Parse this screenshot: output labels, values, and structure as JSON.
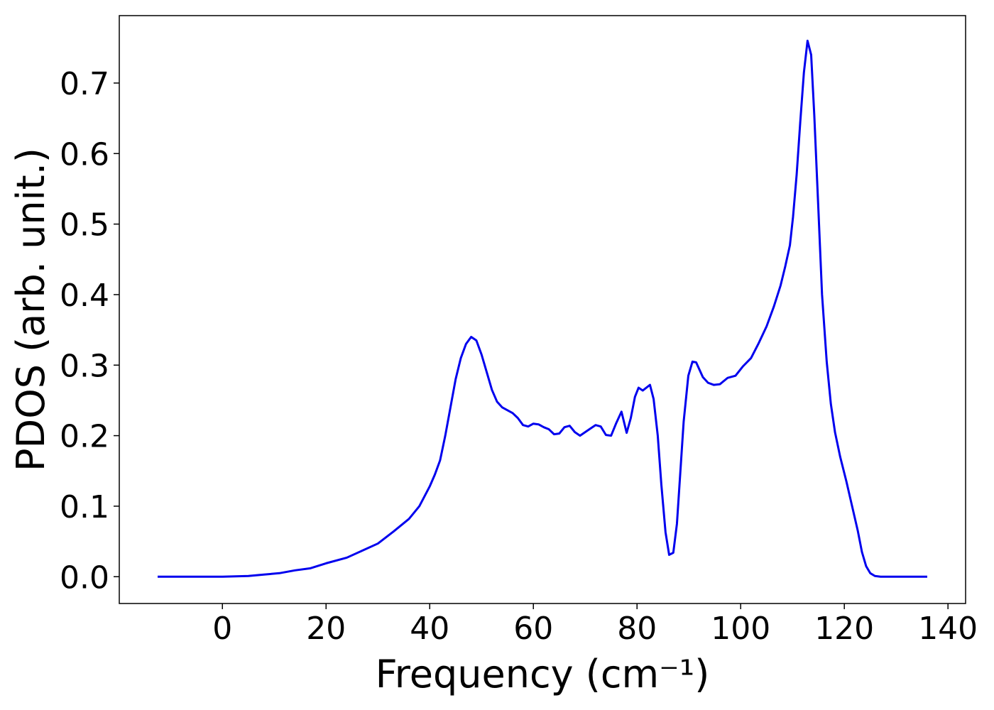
{
  "chart_data": {
    "type": "line",
    "xlabel": "Frequency (cm⁻¹)",
    "ylabel": "PDOS (arb. unit.)",
    "xlim": [
      -19.9,
      143.4
    ],
    "ylim": [
      -0.038,
      0.7956
    ],
    "xticks": [
      0,
      20,
      40,
      60,
      80,
      100,
      120,
      140
    ],
    "yticks": [
      {
        "value": 0,
        "label": "0.0"
      },
      0.1,
      0.2,
      0.3,
      0.4,
      0.5,
      0.6,
      0.7
    ],
    "grid": false,
    "series": [
      {
        "color": "#0000ee",
        "x": [
          -12.5,
          0,
          5,
          8,
          11,
          14,
          17,
          20,
          24,
          27,
          30,
          33,
          36,
          38,
          40,
          41,
          42,
          43,
          44,
          45,
          46,
          47,
          48,
          49,
          50,
          51,
          52,
          53,
          54,
          56,
          57,
          58,
          59,
          60,
          61,
          62,
          63,
          64,
          65,
          66,
          67,
          68,
          69,
          70,
          71,
          72,
          73,
          74,
          75,
          76,
          77,
          78,
          78.8,
          79.6,
          80.3,
          81.1,
          82.5,
          83.2,
          84,
          84.7,
          85.5,
          86.2,
          87,
          87.7,
          89,
          89.9,
          90.7,
          91.4,
          92.7,
          93.7,
          94.8,
          96,
          97.5,
          99,
          100.4,
          102,
          103.4,
          105,
          106.4,
          107.7,
          108.6,
          109.5,
          110.1,
          110.8,
          111.5,
          112.2,
          112.9,
          113.6,
          114.2,
          115,
          115.7,
          116.6,
          117.4,
          118.2,
          119.2,
          120.4,
          121.5,
          122.6,
          123.4,
          124.2,
          125,
          125.9,
          127,
          136
        ],
        "values": [
          0,
          0,
          0.001,
          0.003,
          0.005,
          0.009,
          0.012,
          0.019,
          0.027,
          0.037,
          0.047,
          0.064,
          0.082,
          0.1,
          0.128,
          0.145,
          0.165,
          0.2,
          0.24,
          0.28,
          0.31,
          0.33,
          0.34,
          0.335,
          0.315,
          0.29,
          0.265,
          0.248,
          0.24,
          0.232,
          0.225,
          0.215,
          0.213,
          0.217,
          0.216,
          0.212,
          0.209,
          0.202,
          0.203,
          0.212,
          0.214,
          0.205,
          0.2,
          0.205,
          0.21,
          0.215,
          0.213,
          0.201,
          0.2,
          0.218,
          0.234,
          0.204,
          0.225,
          0.255,
          0.268,
          0.264,
          0.272,
          0.252,
          0.2,
          0.13,
          0.063,
          0.031,
          0.034,
          0.075,
          0.22,
          0.285,
          0.305,
          0.304,
          0.283,
          0.275,
          0.272,
          0.273,
          0.282,
          0.285,
          0.298,
          0.31,
          0.33,
          0.355,
          0.383,
          0.413,
          0.44,
          0.47,
          0.51,
          0.57,
          0.645,
          0.715,
          0.76,
          0.74,
          0.655,
          0.52,
          0.4,
          0.305,
          0.245,
          0.205,
          0.17,
          0.135,
          0.1,
          0.065,
          0.035,
          0.015,
          0.005,
          0.001,
          0,
          0
        ]
      }
    ]
  }
}
